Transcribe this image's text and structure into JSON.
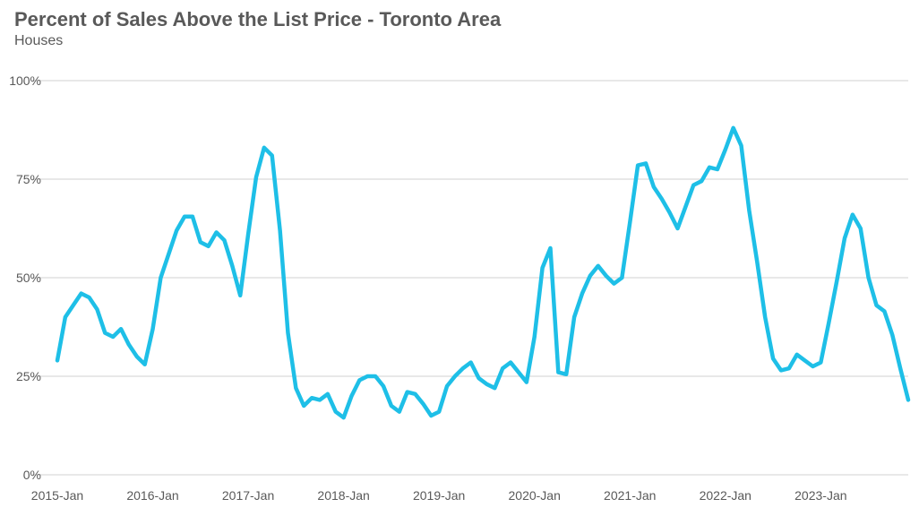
{
  "chart_data": {
    "type": "line",
    "title": "Percent of Sales Above the List Price - Toronto Area",
    "subtitle": "Houses",
    "xlabel": "",
    "ylabel": "",
    "ylim": [
      0,
      1
    ],
    "y_ticks": [
      {
        "value": 0,
        "label": "0%"
      },
      {
        "value": 0.25,
        "label": "25%"
      },
      {
        "value": 0.5,
        "label": "50%"
      },
      {
        "value": 0.75,
        "label": "75%"
      },
      {
        "value": 1,
        "label": "100%"
      }
    ],
    "x_ticks": [
      {
        "index": 0,
        "label": "2015-Jan"
      },
      {
        "index": 12,
        "label": "2016-Jan"
      },
      {
        "index": 24,
        "label": "2017-Jan"
      },
      {
        "index": 36,
        "label": "2018-Jan"
      },
      {
        "index": 48,
        "label": "2019-Jan"
      },
      {
        "index": 60,
        "label": "2020-Jan"
      },
      {
        "index": 72,
        "label": "2021-Jan"
      },
      {
        "index": 84,
        "label": "2022-Jan"
      },
      {
        "index": 96,
        "label": "2023-Jan"
      }
    ],
    "grid": "horizontal",
    "legend": "none",
    "series": [
      {
        "color": "#1ebfe7",
        "values": [
          0.29,
          0.4,
          0.43,
          0.46,
          0.45,
          0.42,
          0.36,
          0.35,
          0.37,
          0.33,
          0.3,
          0.28,
          0.37,
          0.5,
          0.56,
          0.62,
          0.655,
          0.655,
          0.59,
          0.58,
          0.615,
          0.595,
          0.53,
          0.455,
          0.61,
          0.755,
          0.83,
          0.81,
          0.62,
          0.36,
          0.22,
          0.175,
          0.195,
          0.19,
          0.205,
          0.16,
          0.145,
          0.2,
          0.24,
          0.25,
          0.25,
          0.225,
          0.175,
          0.16,
          0.21,
          0.205,
          0.18,
          0.15,
          0.16,
          0.225,
          0.25,
          0.27,
          0.285,
          0.245,
          0.23,
          0.22,
          0.27,
          0.285,
          0.26,
          0.235,
          0.35,
          0.525,
          0.575,
          0.26,
          0.255,
          0.4,
          0.46,
          0.505,
          0.53,
          0.505,
          0.485,
          0.5,
          0.64,
          0.785,
          0.79,
          0.73,
          0.7,
          0.665,
          0.625,
          0.68,
          0.735,
          0.745,
          0.78,
          0.775,
          0.825,
          0.88,
          0.835,
          0.67,
          0.54,
          0.4,
          0.295,
          0.265,
          0.27,
          0.305,
          0.29,
          0.275,
          0.285,
          0.385,
          0.49,
          0.6,
          0.66,
          0.625,
          0.5,
          0.43,
          0.415,
          0.355,
          0.27,
          0.19
        ]
      }
    ]
  }
}
